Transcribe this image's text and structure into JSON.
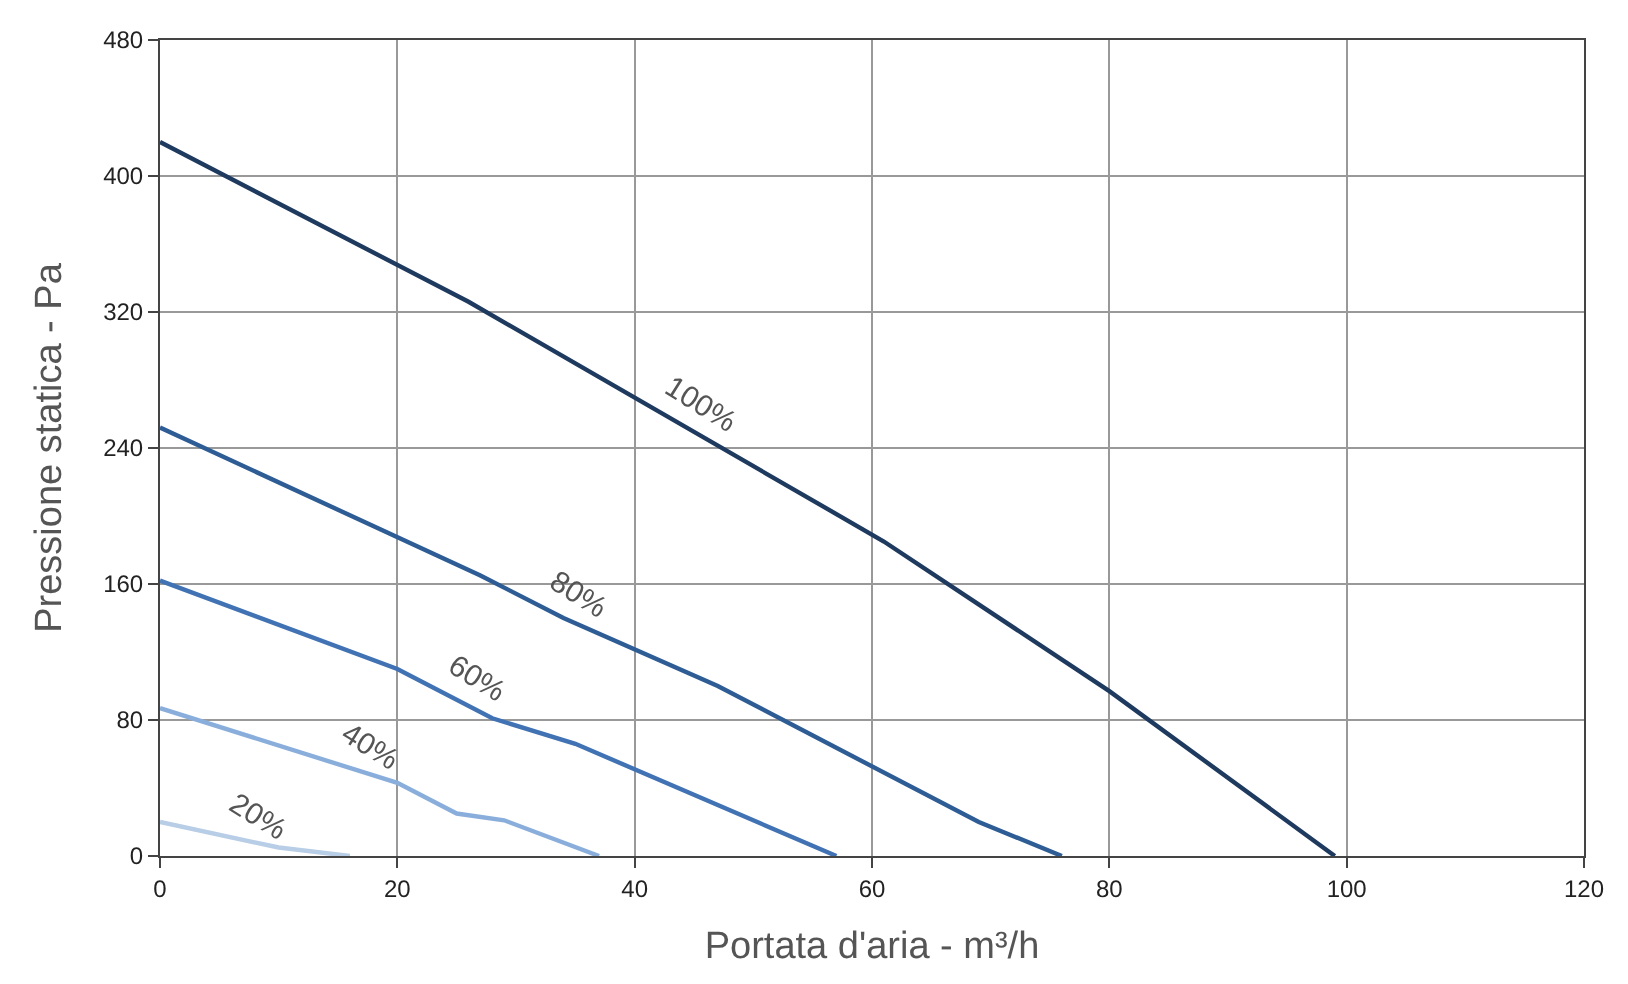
{
  "chart_data": {
    "type": "line",
    "xlabel": "Portata d'aria - m³/h",
    "ylabel": "Pressione statica - Pa",
    "xlim": [
      0,
      120
    ],
    "xticks": [
      0,
      20,
      40,
      60,
      80,
      100,
      120
    ],
    "ylim": [
      0,
      480
    ],
    "yticks": [
      0,
      80,
      160,
      240,
      320,
      400,
      480
    ],
    "grid": true,
    "legend": false,
    "marker": "none",
    "line_style": "solid",
    "series": [
      {
        "name": "100%",
        "color": "#1f3a5f",
        "x": [
          0,
          26,
          61,
          80,
          99
        ],
        "values": [
          420,
          326,
          185,
          97,
          0
        ]
      },
      {
        "name": "80%",
        "color": "#2e5c94",
        "x": [
          0,
          27,
          34,
          47,
          69,
          76
        ],
        "values": [
          252,
          165,
          140,
          100,
          20,
          0
        ]
      },
      {
        "name": "60%",
        "color": "#4172b3",
        "x": [
          0,
          20,
          28,
          35,
          57
        ],
        "values": [
          162,
          110,
          81,
          66,
          0
        ]
      },
      {
        "name": "40%",
        "color": "#8aaedb",
        "x": [
          0,
          20,
          25,
          29,
          37
        ],
        "values": [
          87,
          43,
          25,
          21,
          0
        ]
      },
      {
        "name": "20%",
        "color": "#b8cde6",
        "x": [
          0,
          10,
          16
        ],
        "values": [
          20,
          5,
          0
        ]
      }
    ]
  }
}
